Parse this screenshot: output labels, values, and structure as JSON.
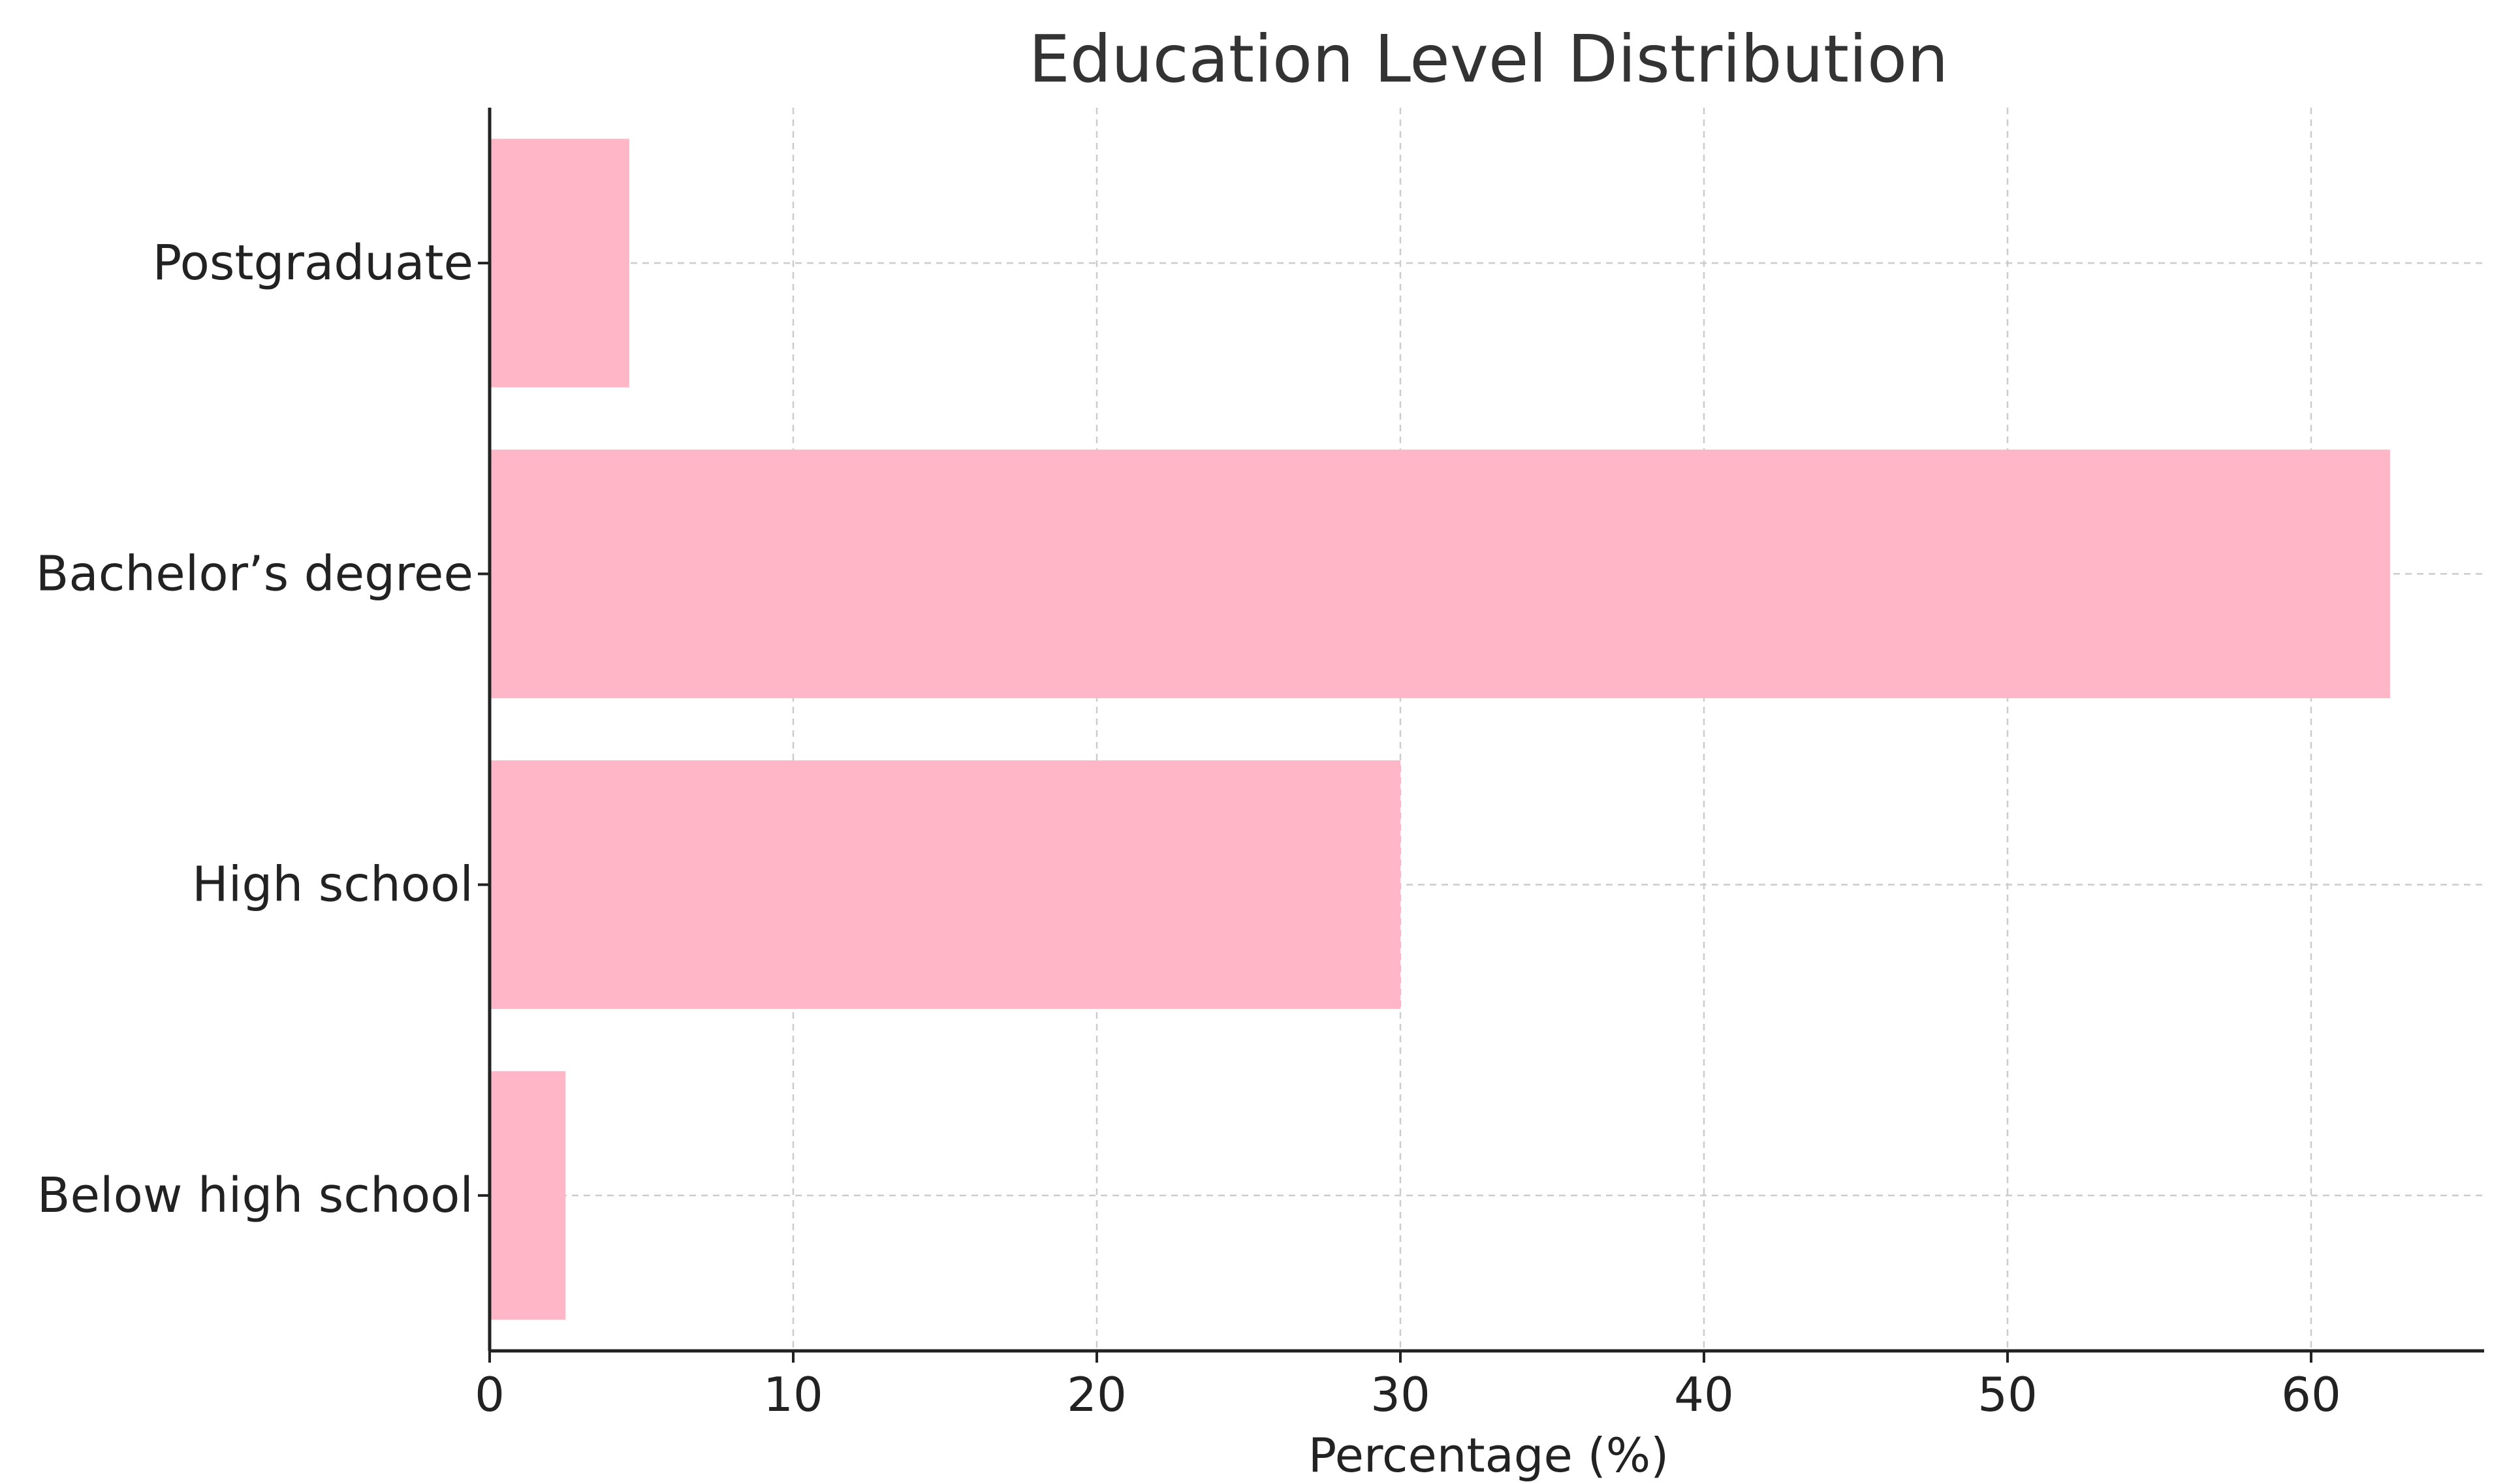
{
  "chart_data": {
    "type": "bar",
    "orientation": "horizontal",
    "title": "Education Level Distribution",
    "xlabel": "Percentage (%)",
    "ylabel": "",
    "categories": [
      "Below high school",
      "High school",
      "Bachelor’s degree",
      "Postgraduate"
    ],
    "values": [
      2.5,
      30.0,
      62.6,
      4.6
    ],
    "xlim": [
      0,
      65.7
    ],
    "xticks": [
      0,
      10,
      20,
      30,
      40,
      50,
      60
    ],
    "xtick_labels": [
      "0",
      "10",
      "20",
      "30",
      "40",
      "50",
      "60"
    ],
    "grid": true,
    "bar_color": "#ffb6c6",
    "axis_color": "#222222",
    "grid_color": "#cccccc",
    "title_color": "#333333",
    "text_color": "#222222"
  }
}
